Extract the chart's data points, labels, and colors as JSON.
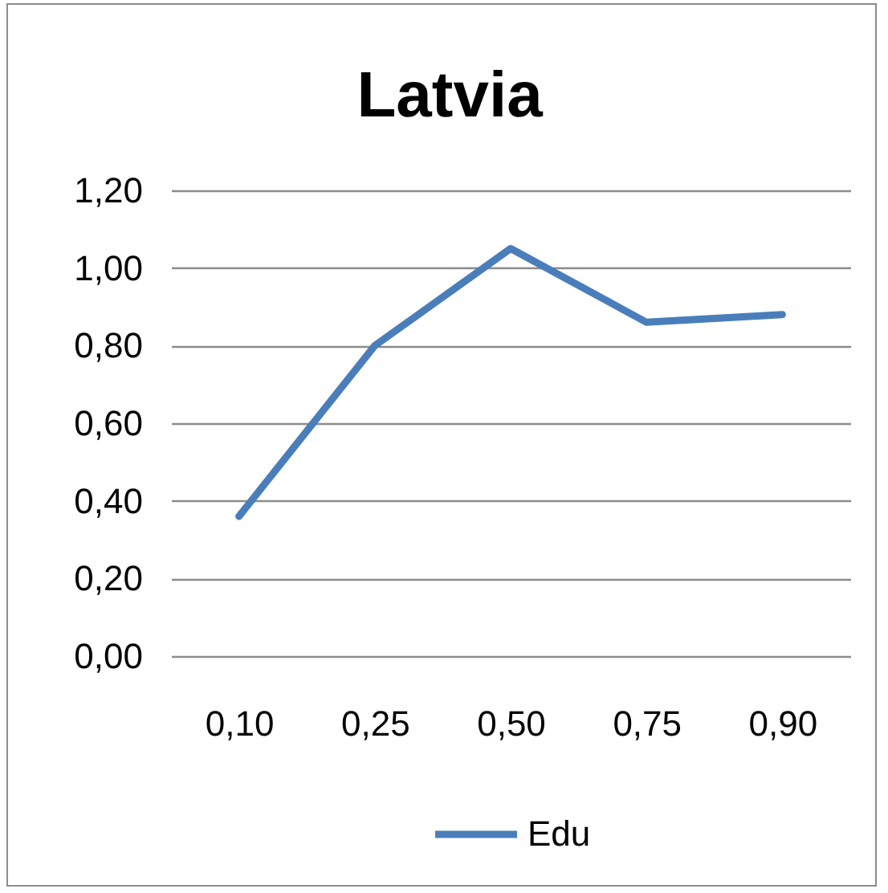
{
  "chart_data": {
    "type": "line",
    "title": "Latvia",
    "categories": [
      "0,10",
      "0,25",
      "0,50",
      "0,75",
      "0,90"
    ],
    "series": [
      {
        "name": "Edu",
        "color": "#4a7ebb",
        "values": [
          0.36,
          0.8,
          1.05,
          0.86,
          0.88
        ]
      }
    ],
    "ylim": [
      0,
      1.2
    ],
    "yticks": [
      {
        "value": 0,
        "label": "0,00"
      },
      {
        "value": 0.2,
        "label": "0,20"
      },
      {
        "value": 0.4,
        "label": "0,40"
      },
      {
        "value": 0.6,
        "label": "0,60"
      },
      {
        "value": 0.8,
        "label": "0,80"
      },
      {
        "value": 1.0,
        "label": "1,00"
      },
      {
        "value": 1.2,
        "label": "1,20"
      }
    ],
    "grid": "y",
    "legend": "bottom"
  }
}
